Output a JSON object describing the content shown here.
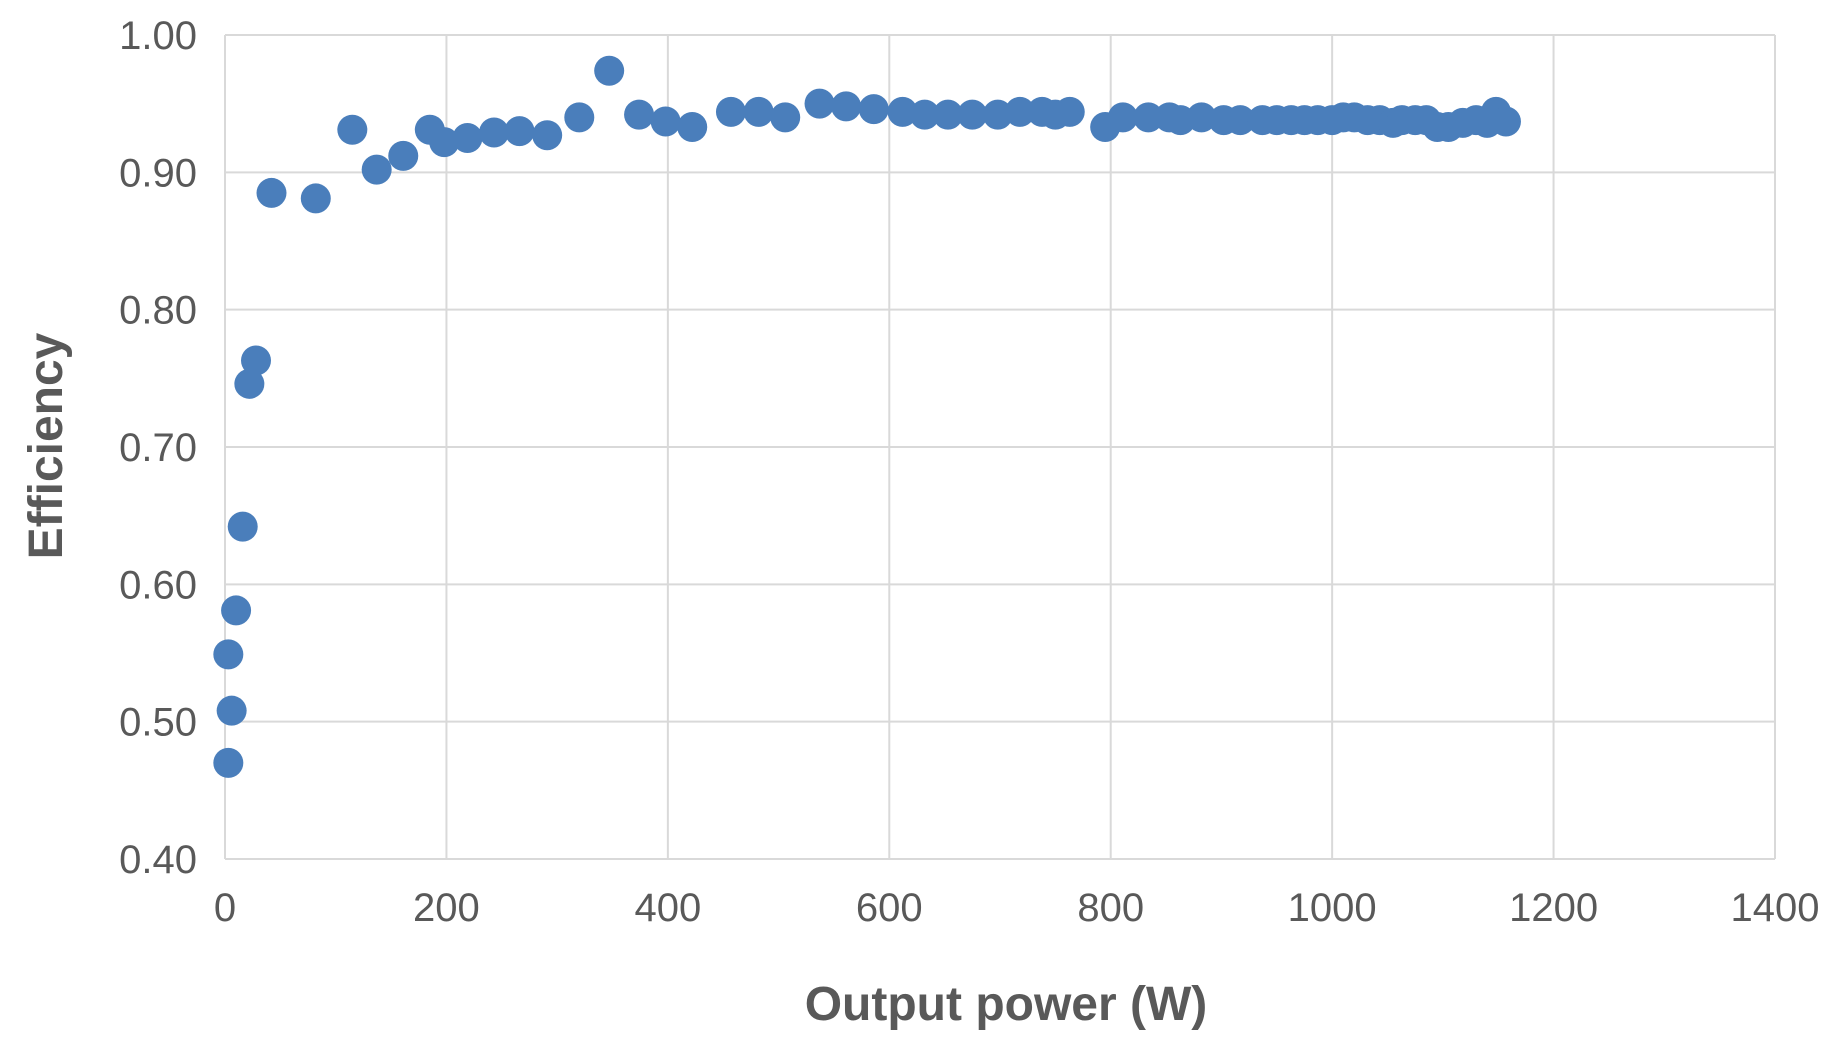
{
  "chart_data": {
    "type": "scatter",
    "title": "",
    "xlabel": "Output power (W)",
    "ylabel": "Efficiency",
    "xlim": [
      0,
      1400
    ],
    "ylim": [
      0.4,
      1.0
    ],
    "xticks": [
      "0",
      "200",
      "400",
      "600",
      "800",
      "1000",
      "1200",
      "1400"
    ],
    "yticks": [
      "0.40",
      "0.50",
      "0.60",
      "0.70",
      "0.80",
      "0.90",
      "1.00"
    ],
    "grid": true,
    "legend": "none",
    "marker_color": "#4a7ebb",
    "series": [
      {
        "x": [
          3,
          3,
          6,
          10,
          16,
          22,
          28,
          42,
          82,
          115,
          137,
          161,
          185,
          198,
          219,
          243,
          266,
          291,
          320,
          347,
          374,
          398,
          422,
          457,
          482,
          506,
          537,
          561,
          586,
          612,
          632,
          653,
          675,
          698,
          718,
          738,
          750,
          763,
          795,
          811,
          834,
          853,
          863,
          882,
          902,
          917,
          937,
          950,
          963,
          975,
          987,
          1000,
          1010,
          1020,
          1032,
          1043,
          1055,
          1063,
          1075,
          1085,
          1095,
          1105,
          1118,
          1130,
          1140,
          1148,
          1157
        ],
        "y": [
          0.47,
          0.549,
          0.508,
          0.581,
          0.642,
          0.746,
          0.763,
          0.885,
          0.881,
          0.931,
          0.902,
          0.912,
          0.931,
          0.922,
          0.925,
          0.929,
          0.93,
          0.927,
          0.94,
          0.974,
          0.942,
          0.937,
          0.933,
          0.944,
          0.944,
          0.94,
          0.95,
          0.948,
          0.946,
          0.944,
          0.942,
          0.942,
          0.942,
          0.942,
          0.944,
          0.944,
          0.942,
          0.944,
          0.933,
          0.94,
          0.94,
          0.94,
          0.938,
          0.94,
          0.938,
          0.938,
          0.938,
          0.938,
          0.938,
          0.938,
          0.938,
          0.938,
          0.94,
          0.94,
          0.938,
          0.938,
          0.936,
          0.938,
          0.938,
          0.938,
          0.933,
          0.933,
          0.936,
          0.938,
          0.936,
          0.944,
          0.937
        ]
      }
    ]
  }
}
